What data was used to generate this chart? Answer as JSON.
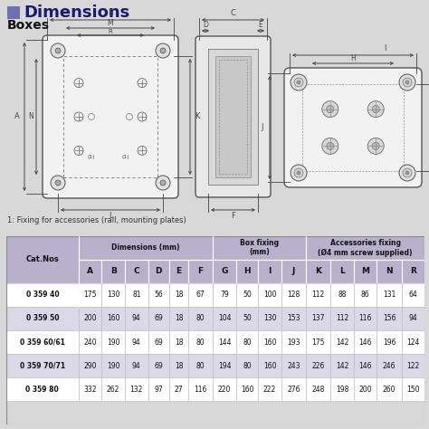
{
  "title": "Dimensions",
  "subtitle": "Boxes",
  "note": "1: Fixing for accessories (rail, mounting plates)",
  "bg_color": "#d8d8d8",
  "header_bg": "#b8b0cc",
  "row_bg_odd": "#ffffff",
  "row_bg_even": "#dbd8e8",
  "table_headers_mid": [
    "Cat.Nos",
    "A",
    "B",
    "C",
    "D",
    "E",
    "F",
    "G",
    "H",
    "I",
    "J",
    "K",
    "L",
    "M",
    "N",
    "R"
  ],
  "table_data": [
    [
      "0 359 40",
      "175",
      "130",
      "81",
      "56",
      "18",
      "67",
      "79",
      "50",
      "100",
      "128",
      "112",
      "88",
      "86",
      "131",
      "64"
    ],
    [
      "0 359 50",
      "200",
      "160",
      "94",
      "69",
      "18",
      "80",
      "104",
      "50",
      "130",
      "153",
      "137",
      "112",
      "116",
      "156",
      "94"
    ],
    [
      "0 359 60/61",
      "240",
      "190",
      "94",
      "69",
      "18",
      "80",
      "144",
      "80",
      "160",
      "193",
      "175",
      "142",
      "146",
      "196",
      "124"
    ],
    [
      "0 359 70/71",
      "290",
      "190",
      "94",
      "69",
      "18",
      "80",
      "194",
      "80",
      "160",
      "243",
      "226",
      "142",
      "146",
      "246",
      "122"
    ],
    [
      "0 359 80",
      "332",
      "262",
      "132",
      "97",
      "27",
      "116",
      "220",
      "160",
      "222",
      "276",
      "248",
      "198",
      "200",
      "260",
      "150"
    ]
  ],
  "title_color": "#1a1a6e",
  "title_square_color": "#7070b0",
  "text_color": "#111111",
  "header_text_color": "#111111",
  "line_color": "#444444",
  "box_fill": "#f2f2f2",
  "box_edge": "#555555"
}
